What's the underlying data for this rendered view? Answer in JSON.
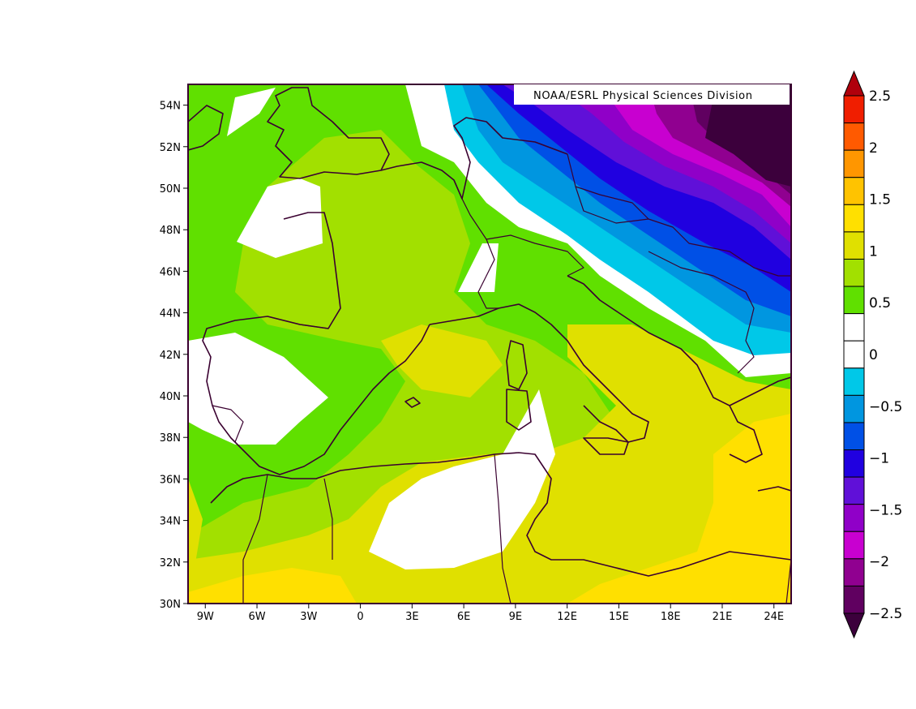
{
  "credit": "NOAA/ESRL Physical Sciences Division",
  "map": {
    "lon_range": [
      -10,
      25
    ],
    "lat_range": [
      30,
      55
    ],
    "x_ticks": [
      "9W",
      "6W",
      "3W",
      "0",
      "3E",
      "6E",
      "9E",
      "12E",
      "15E",
      "18E",
      "21E",
      "24E"
    ],
    "y_ticks": [
      "54N",
      "52N",
      "50N",
      "48N",
      "46N",
      "44N",
      "42N",
      "40N",
      "38N",
      "36N",
      "34N",
      "32N",
      "30N"
    ]
  },
  "colorbar": {
    "labels": [
      "2.5",
      "2",
      "1.5",
      "1",
      "0.5",
      "0",
      "−0.5",
      "−1",
      "−1.5",
      "−2",
      "−2.5"
    ],
    "colors": [
      "#b0000c",
      "#f01e00",
      "#ff5a00",
      "#ff9600",
      "#ffc300",
      "#ffe000",
      "#e0e000",
      "#a2e000",
      "#60e000",
      "#ffffff",
      "#ffffff",
      "#00c8e8",
      "#0096e0",
      "#0050e6",
      "#2000e0",
      "#6010d8",
      "#9000c8",
      "#c800d0",
      "#900090",
      "#600060",
      "#3c003c"
    ]
  },
  "colors": {
    "positive_low": "#60e000",
    "positive_mid": "#a2e000",
    "positive_high": "#e0e000",
    "positive_top": "#ffe000",
    "negative_light": "#00c8e8",
    "negative_mid": "#0096e0",
    "negative_deep": "#2000e0",
    "negative_violet": "#c800d0",
    "negative_dark": "#3c003c",
    "coastline": "#3a0030"
  }
}
